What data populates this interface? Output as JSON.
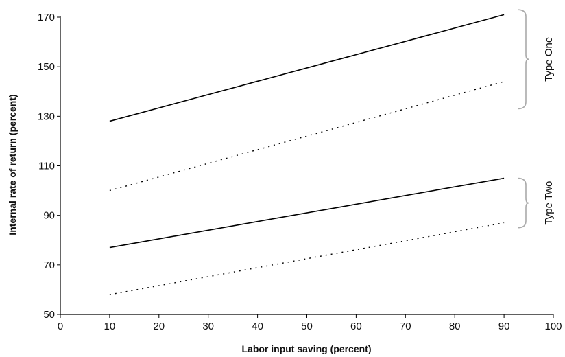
{
  "chart_data": {
    "type": "line",
    "xlabel": "Labor input saving (percent)",
    "ylabel": "Internal rate of return (percent)",
    "xlim": [
      0,
      100
    ],
    "ylim": [
      50,
      170
    ],
    "x_ticks": [
      0,
      10,
      20,
      30,
      40,
      50,
      60,
      70,
      80,
      90,
      100
    ],
    "y_ticks": [
      50,
      70,
      90,
      110,
      130,
      150,
      170
    ],
    "grid": false,
    "legend": "none",
    "series": [
      {
        "group": "Type One",
        "style": "solid",
        "color": "#000000",
        "x": [
          10,
          90
        ],
        "y": [
          128,
          171
        ]
      },
      {
        "group": "Type One",
        "style": "dotted",
        "color": "#000000",
        "x": [
          10,
          90
        ],
        "y": [
          100,
          144
        ]
      },
      {
        "group": "Type Two",
        "style": "solid",
        "color": "#000000",
        "x": [
          10,
          90
        ],
        "y": [
          77,
          105
        ]
      },
      {
        "group": "Type Two",
        "style": "dotted",
        "color": "#000000",
        "x": [
          10,
          90
        ],
        "y": [
          58,
          87
        ]
      }
    ],
    "annotations": [
      {
        "label": "Type One",
        "y_range": [
          133,
          173
        ]
      },
      {
        "label": "Type Two",
        "y_range": [
          85,
          105
        ]
      }
    ],
    "bracket_color": "#aaaaaa"
  }
}
